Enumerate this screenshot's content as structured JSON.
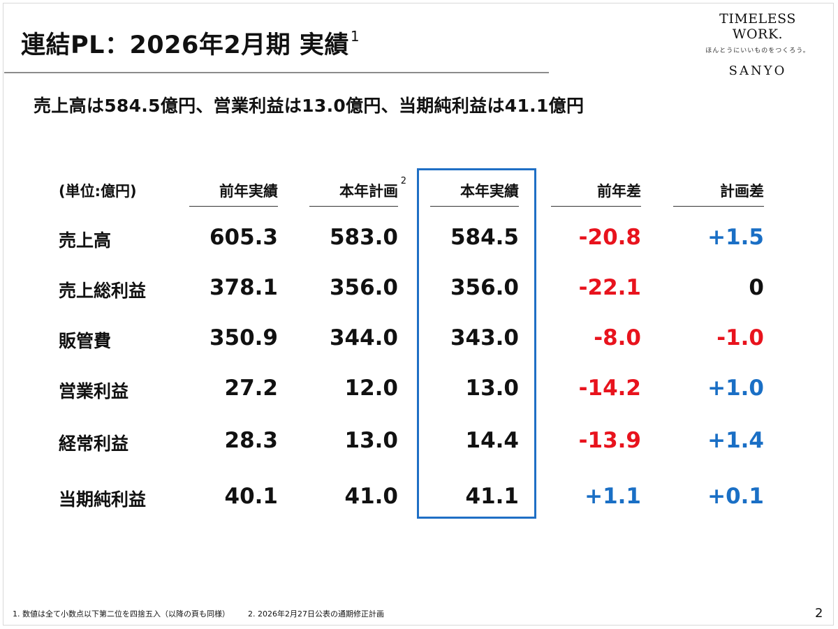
{
  "title": {
    "text": "連結PL：2026年2月期 実績",
    "footnote_ref": "1"
  },
  "brand": {
    "tagline": "TIMELESS WORK.",
    "sub": "ほんとうにいいものをつくろう。",
    "logo": "SANYO"
  },
  "headline": "売上高は584.5億円、営業利益は13.0億円、当期純利益は41.1億円",
  "table": {
    "unit_label": "(単位:億円)",
    "columns": [
      {
        "label": "前年実績",
        "sup": ""
      },
      {
        "label": "本年計画",
        "sup": "2"
      },
      {
        "label": "本年実績",
        "sup": ""
      },
      {
        "label": "前年差",
        "sup": ""
      },
      {
        "label": "計画差",
        "sup": ""
      }
    ],
    "rows": [
      {
        "label": "売上高",
        "values": [
          "605.3",
          "583.0",
          "584.5",
          "-20.8",
          "+1.5"
        ]
      },
      {
        "label": "売上総利益",
        "values": [
          "378.1",
          "356.0",
          "356.0",
          "-22.1",
          "0"
        ]
      },
      {
        "label": "販管費",
        "values": [
          "350.9",
          "344.0",
          "343.0",
          "-8.0",
          "-1.0"
        ]
      },
      {
        "label": "営業利益",
        "values": [
          "27.2",
          "12.0",
          "13.0",
          "-14.2",
          "+1.0"
        ]
      },
      {
        "label": "経常利益",
        "values": [
          "28.3",
          "13.0",
          "14.4",
          "-13.9",
          "+1.4"
        ]
      },
      {
        "label": "当期純利益",
        "values": [
          "40.1",
          "41.0",
          "41.1",
          "+1.1",
          "+0.1"
        ]
      }
    ],
    "colors": {
      "negative": "#e8131d",
      "positive": "#1a6fc5",
      "highlight_border": "#1f6fc5"
    }
  },
  "footnotes": [
    "1. 数値は全て小数点以下第二位を四捨五入（以降の頁も同様）",
    "2. 2026年2月27日公表の通期修正計画"
  ],
  "page_number": "2"
}
